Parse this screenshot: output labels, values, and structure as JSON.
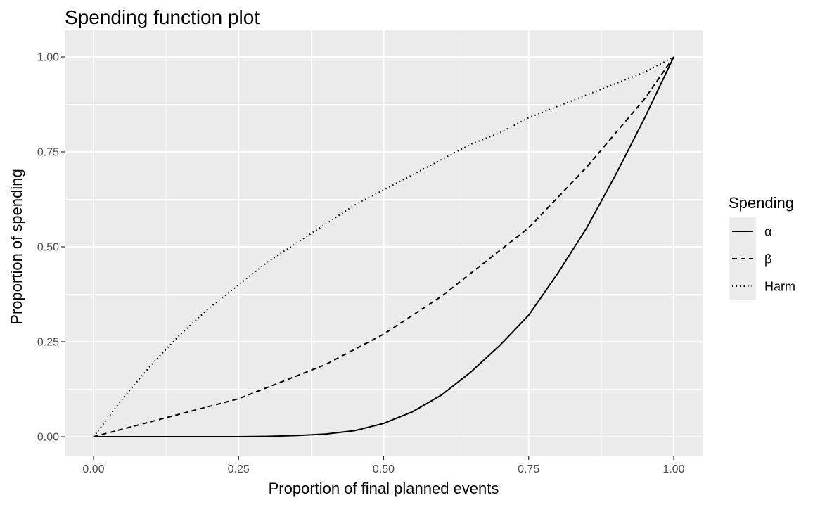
{
  "chart_data": {
    "type": "line",
    "title": "Spending function plot",
    "xlabel": "Proportion of final planned events",
    "ylabel": "Proportion of spending",
    "xlim": [
      0,
      1
    ],
    "ylim": [
      0,
      1
    ],
    "x_ticks": [
      "0.00",
      "0.25",
      "0.50",
      "0.75",
      "1.00"
    ],
    "y_ticks": [
      "0.00",
      "0.25",
      "0.50",
      "0.75",
      "1.00"
    ],
    "grid": true,
    "legend": {
      "title": "Spending",
      "position": "right"
    },
    "x": [
      0,
      0.05,
      0.1,
      0.15,
      0.2,
      0.25,
      0.3,
      0.35,
      0.4,
      0.45,
      0.5,
      0.55,
      0.6,
      0.65,
      0.7,
      0.75,
      0.8,
      0.85,
      0.9,
      0.95,
      1.0
    ],
    "series": [
      {
        "name": "α",
        "line_style": "solid",
        "values": [
          0,
          0,
          0,
          0,
          0,
          0,
          0.001,
          0.003,
          0.007,
          0.016,
          0.035,
          0.066,
          0.11,
          0.17,
          0.24,
          0.32,
          0.43,
          0.55,
          0.69,
          0.84,
          1.0
        ]
      },
      {
        "name": "β",
        "line_style": "dashed",
        "values": [
          0,
          0.02,
          0.04,
          0.06,
          0.08,
          0.1,
          0.13,
          0.16,
          0.19,
          0.23,
          0.27,
          0.32,
          0.37,
          0.43,
          0.49,
          0.55,
          0.63,
          0.71,
          0.8,
          0.89,
          1.0
        ]
      },
      {
        "name": "Harm",
        "line_style": "dotted",
        "values": [
          0,
          0.1,
          0.19,
          0.27,
          0.34,
          0.4,
          0.46,
          0.51,
          0.56,
          0.61,
          0.65,
          0.69,
          0.73,
          0.77,
          0.8,
          0.84,
          0.87,
          0.9,
          0.93,
          0.96,
          1.0
        ]
      }
    ]
  }
}
